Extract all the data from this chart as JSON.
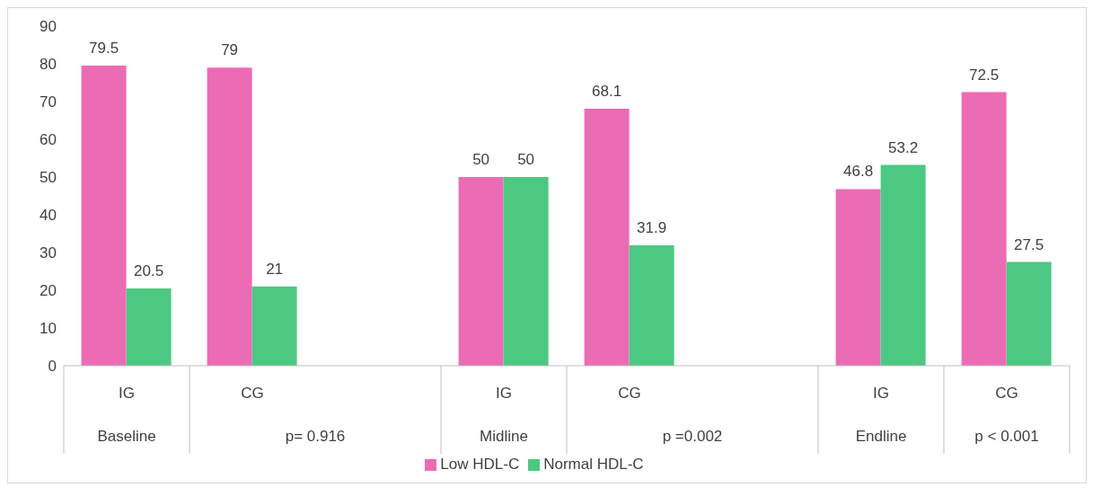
{
  "chart_data": {
    "type": "bar",
    "categories": [
      "IG",
      "CG",
      null,
      "IG",
      "CG",
      null,
      "IG",
      "CG"
    ],
    "series": [
      {
        "name": "Low HDL-C",
        "color": "#ec6bb5",
        "values": [
          79.5,
          79,
          null,
          50,
          68.1,
          null,
          46.8,
          72.5
        ]
      },
      {
        "name": "Normal HDL-C",
        "color": "#4dc882",
        "values": [
          20.5,
          21,
          null,
          50,
          31.9,
          null,
          53.2,
          27.5
        ]
      }
    ],
    "ylim": [
      0,
      90
    ],
    "yticks": [
      0,
      10,
      20,
      30,
      40,
      50,
      60,
      70,
      80,
      90
    ],
    "grid": false,
    "legend": "bottom",
    "data_labels": true,
    "annotations": [
      "Baseline",
      "p= 0.916",
      "Midline",
      "p =0.002",
      "Endline",
      "p < 0.001"
    ]
  }
}
